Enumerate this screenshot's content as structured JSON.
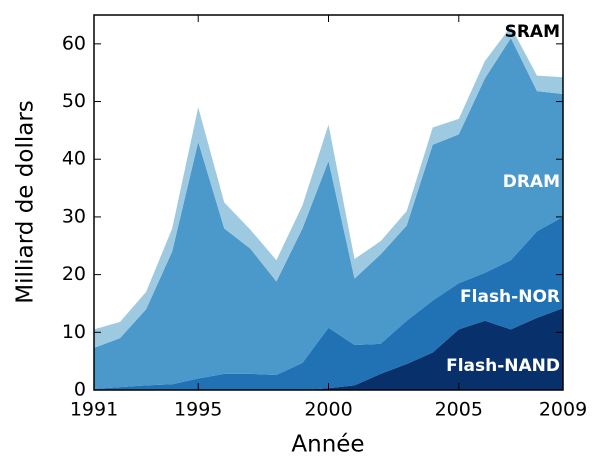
{
  "chart_data": {
    "type": "stacked_area",
    "x": [
      1991,
      1992,
      1993,
      1994,
      1995,
      1996,
      1997,
      1998,
      1999,
      2000,
      2001,
      2002,
      2003,
      2004,
      2005,
      2006,
      2007,
      2008,
      2009
    ],
    "series": [
      {
        "name": "Flash-NAND",
        "color": "#08306b",
        "label_color": "#ffffff",
        "values": [
          0,
          0,
          0,
          0,
          0,
          0,
          0,
          0,
          0,
          0.3,
          0.8,
          2.8,
          4.5,
          6.5,
          10.5,
          12,
          10.5,
          12.5,
          14.2
        ]
      },
      {
        "name": "Flash-NOR",
        "color": "#2171b5",
        "label_color": "#ffffff",
        "values": [
          0.2,
          0.5,
          0.8,
          1,
          2,
          2.8,
          2.8,
          2.6,
          4.7,
          10.5,
          7.0,
          5.2,
          7.5,
          9.0,
          8.0,
          8.3,
          12.0,
          15.0,
          15.8
        ]
      },
      {
        "name": "DRAM",
        "color": "#4b98ca",
        "label_color": "#ffffff",
        "values": [
          7.1,
          8.5,
          13.2,
          23,
          41,
          25.2,
          21.7,
          16.2,
          23.3,
          28.9,
          11.5,
          15.5,
          16.5,
          27,
          25.8,
          33.7,
          38.5,
          24.3,
          21.3
        ]
      },
      {
        "name": "SRAM",
        "color": "#9ecae1",
        "label_color": "#000000",
        "values": [
          3.2,
          2.8,
          3,
          4,
          6,
          4.5,
          3.3,
          3.7,
          4,
          6.3,
          3.4,
          2.3,
          2.5,
          3,
          2.7,
          3,
          2,
          2.7,
          2.9
        ]
      }
    ],
    "xlabel": "Année",
    "ylabel": "Milliard de dollars",
    "xlim": [
      1991,
      2009
    ],
    "xticks": [
      1991,
      1995,
      2000,
      2005,
      2009
    ],
    "ylim": [
      0,
      65
    ],
    "yticks": [
      0,
      10,
      20,
      30,
      40,
      50,
      60
    ]
  }
}
